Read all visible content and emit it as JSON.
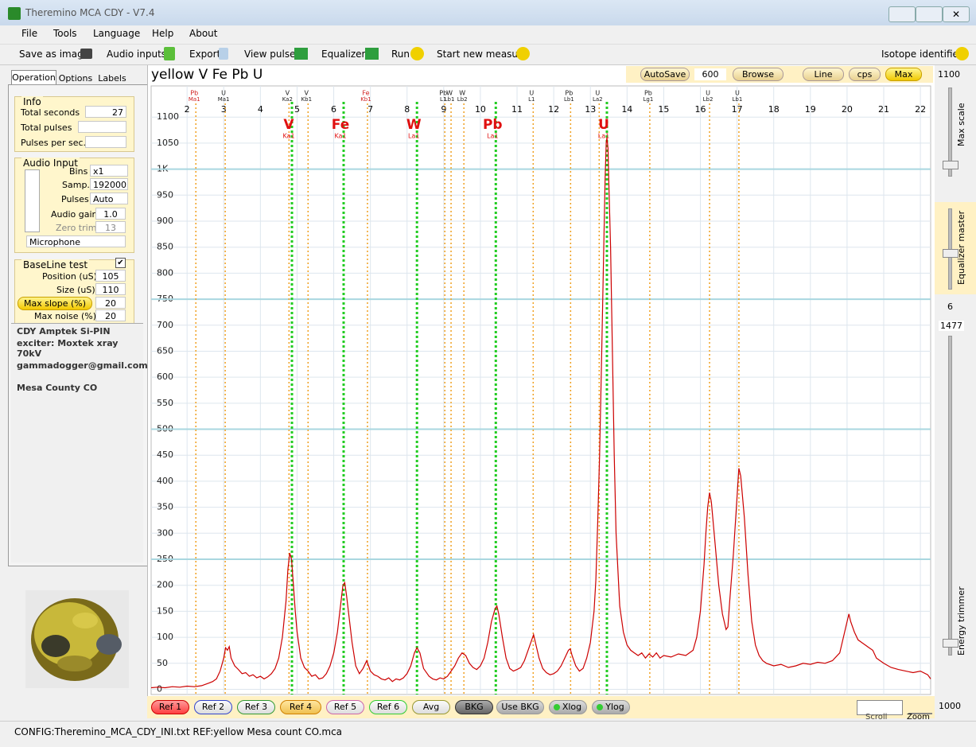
{
  "window": {
    "title": "Theremino MCA CDY - V7.4"
  },
  "menu": [
    "File",
    "Tools",
    "Language",
    "Help",
    "About"
  ],
  "toolbar": {
    "items": [
      "Save as image",
      "Audio inputs",
      "Export",
      "View pulses",
      "Equalizers",
      "Run",
      "Start new measure"
    ],
    "right": "Isotope identifier"
  },
  "tabs": [
    "Operation",
    "Options",
    "Labels"
  ],
  "info": {
    "title": "Info",
    "rows": [
      {
        "label": "Total seconds",
        "value": 27
      },
      {
        "label": "Total pulses"
      },
      {
        "label": "Pulses per sec."
      }
    ]
  },
  "audio_input": {
    "title": "Audio Input",
    "rows": [
      {
        "label": "Bins",
        "value": "x1"
      },
      {
        "label": "Samp.",
        "value": "192000"
      },
      {
        "label": "Pulses",
        "value": "Auto"
      },
      {
        "label": "Audio gain",
        "value": "1.0"
      },
      {
        "label": "Zero trim",
        "value": 13
      }
    ],
    "device": "Microphone"
  },
  "baseline": {
    "title": "BaseLine test",
    "rows": [
      {
        "label": "Position (uS)",
        "value": 105
      },
      {
        "label": "Size (uS)",
        "value": 110
      },
      {
        "label": "Max slope (%)",
        "value": 20
      },
      {
        "label": "Max noise (%)",
        "value": 20
      }
    ]
  },
  "notes": [
    "CDY Amptek Si-PIN",
    "exciter: Moxtek xray 70kV",
    "gammadogger@gmail.com",
    "Mesa County CO"
  ],
  "top_controls": {
    "autosave": "AutoSave",
    "autosave_value": 600,
    "browse": "Browse",
    "line": "Line",
    "cps": "cps",
    "max": "Max"
  },
  "sliders": {
    "max_scale": {
      "label": "Max scale",
      "value": 1100
    },
    "equalizer_master": {
      "label": "Equalizer master",
      "value": 6
    },
    "energy_trimmer": {
      "label": "Energy trimmer",
      "top_value": 1477
    },
    "zoom_value": 1000
  },
  "bottom_buttons": [
    "Ref 1",
    "Ref 2",
    "Ref 3",
    "Ref 4",
    "Ref 5",
    "Ref 6",
    "Avg",
    "BKG",
    "Use BKG",
    "Xlog",
    "Ylog"
  ],
  "scroll": "Scroll",
  "zoom": "Zoom",
  "status": "CONFIG:Theremino_MCA_CDY_INI.txt REF:yellow Mesa count CO.mca",
  "chart_data": {
    "type": "line",
    "title": "yellow V Fe Pb U",
    "color": "#cc0000",
    "x": [
      1.02,
      1.2,
      1.4,
      1.6,
      1.8,
      2.0,
      2.2,
      2.4,
      2.6,
      2.7,
      2.8,
      2.9,
      3.0,
      3.05,
      3.1,
      3.15,
      3.2,
      3.3,
      3.4,
      3.5,
      3.6,
      3.7,
      3.8,
      3.9,
      4.0,
      4.1,
      4.2,
      4.3,
      4.4,
      4.5,
      4.6,
      4.7,
      4.75,
      4.8,
      4.85,
      4.9,
      4.95,
      5.0,
      5.1,
      5.2,
      5.3,
      5.4,
      5.5,
      5.6,
      5.7,
      5.8,
      5.9,
      6.0,
      6.1,
      6.2,
      6.25,
      6.3,
      6.35,
      6.4,
      6.5,
      6.6,
      6.7,
      6.8,
      6.9,
      7.0,
      7.1,
      7.2,
      7.3,
      7.4,
      7.5,
      7.6,
      7.7,
      7.8,
      7.9,
      8.0,
      8.1,
      8.2,
      8.27,
      8.35,
      8.45,
      8.6,
      8.7,
      8.8,
      8.9,
      9.0,
      9.1,
      9.2,
      9.3,
      9.4,
      9.5,
      9.6,
      9.7,
      9.8,
      9.9,
      10.0,
      10.1,
      10.2,
      10.3,
      10.4,
      10.45,
      10.5,
      10.6,
      10.7,
      10.8,
      10.9,
      11.0,
      11.1,
      11.2,
      11.3,
      11.4,
      11.45,
      11.5,
      11.6,
      11.7,
      11.8,
      11.9,
      12.0,
      12.1,
      12.2,
      12.3,
      12.4,
      12.45,
      12.5,
      12.6,
      12.7,
      12.8,
      12.9,
      13.0,
      13.1,
      13.15,
      13.2,
      13.25,
      13.3,
      13.35,
      13.4,
      13.43,
      13.45,
      13.48,
      13.5,
      13.55,
      13.6,
      13.65,
      13.7,
      13.8,
      13.9,
      14.0,
      14.1,
      14.2,
      14.3,
      14.4,
      14.5,
      14.6,
      14.7,
      14.8,
      14.9,
      15.0,
      15.2,
      15.4,
      15.6,
      15.8,
      15.9,
      16.0,
      16.1,
      16.15,
      16.2,
      16.25,
      16.3,
      16.4,
      16.5,
      16.6,
      16.7,
      16.75,
      16.8,
      16.9,
      17.0,
      17.05,
      17.1,
      17.2,
      17.3,
      17.4,
      17.5,
      17.6,
      17.7,
      17.8,
      18.0,
      18.2,
      18.4,
      18.6,
      18.8,
      19.0,
      19.2,
      19.4,
      19.6,
      19.8,
      19.9,
      20.0,
      20.05,
      20.1,
      20.2,
      20.3,
      20.4,
      20.5,
      20.6,
      20.7,
      20.8,
      20.9,
      21.0,
      21.2,
      21.4,
      21.6,
      21.8,
      22.0,
      22.2,
      22.28
    ],
    "values": [
      3,
      4,
      3,
      5,
      4,
      6,
      5,
      7,
      12,
      15,
      20,
      35,
      60,
      80,
      75,
      82,
      60,
      45,
      38,
      30,
      32,
      25,
      28,
      22,
      25,
      20,
      24,
      30,
      40,
      60,
      100,
      170,
      230,
      262,
      250,
      200,
      150,
      110,
      60,
      42,
      35,
      25,
      28,
      20,
      22,
      30,
      45,
      70,
      110,
      170,
      200,
      205,
      180,
      150,
      90,
      45,
      30,
      40,
      55,
      35,
      28,
      25,
      20,
      18,
      22,
      15,
      20,
      18,
      22,
      30,
      45,
      70,
      80,
      70,
      40,
      25,
      20,
      18,
      22,
      20,
      25,
      35,
      45,
      60,
      70,
      65,
      50,
      42,
      38,
      45,
      60,
      90,
      130,
      155,
      160,
      145,
      100,
      60,
      40,
      35,
      38,
      42,
      55,
      75,
      95,
      105,
      90,
      60,
      40,
      32,
      28,
      30,
      35,
      45,
      60,
      75,
      78,
      65,
      45,
      35,
      40,
      60,
      90,
      150,
      210,
      320,
      450,
      620,
      800,
      980,
      1050,
      1060,
      1040,
      980,
      850,
      650,
      450,
      300,
      160,
      110,
      85,
      75,
      70,
      65,
      70,
      60,
      68,
      62,
      70,
      60,
      65,
      62,
      68,
      65,
      75,
      100,
      150,
      240,
      300,
      350,
      378,
      360,
      280,
      200,
      145,
      115,
      120,
      170,
      260,
      370,
      425,
      410,
      330,
      220,
      130,
      85,
      65,
      55,
      50,
      45,
      48,
      42,
      45,
      50,
      48,
      52,
      50,
      55,
      70,
      100,
      130,
      145,
      130,
      110,
      95,
      90,
      85,
      80,
      75,
      60,
      55,
      50,
      42,
      38,
      35,
      32,
      35,
      28,
      20
    ],
    "xlim": [
      1.02,
      22.28
    ],
    "ylim": [
      -10,
      1160
    ],
    "xticks": [
      2,
      3,
      4,
      5,
      6,
      7,
      8,
      9,
      10,
      11,
      12,
      13,
      14,
      15,
      16,
      17,
      18,
      19,
      20,
      21,
      22
    ],
    "yticks": [
      0,
      50,
      100,
      150,
      200,
      250,
      300,
      350,
      400,
      450,
      500,
      550,
      600,
      650,
      700,
      750,
      800,
      850,
      900,
      950,
      {
        "value": 1000,
        "label": "1K"
      },
      1050,
      1100
    ],
    "major_gridlines": [
      250,
      500,
      750,
      1000
    ],
    "grid": true,
    "markers": [
      {
        "element": "Pb",
        "line": "Ma1",
        "energy": 2.24,
        "identified": false,
        "color": "#d02020"
      },
      {
        "element": "U",
        "line": "Ma1",
        "energy": 3.04,
        "identified": false,
        "color": "#202020"
      },
      {
        "element": "V",
        "line": "Ka2",
        "energy": 4.78,
        "identified": false,
        "color": "#202020"
      },
      {
        "element": "V",
        "line": "Ka1",
        "energy": 4.86,
        "identified": true,
        "color": "#e01010"
      },
      {
        "element": "V",
        "line": "Kb1",
        "energy": 5.3,
        "identified": false,
        "color": "#202020"
      },
      {
        "element": "Fe",
        "line": "Ka1",
        "energy": 6.27,
        "identified": true,
        "color": "#e01010"
      },
      {
        "element": "Fe",
        "line": "Kb1",
        "energy": 6.92,
        "identified": false,
        "color": "#d02020"
      },
      {
        "element": "W",
        "line": "La1",
        "energy": 8.27,
        "identified": true,
        "color": "#e01010"
      },
      {
        "element": "Pb",
        "line": "L1",
        "energy": 9.03,
        "identified": false,
        "color": "#202020"
      },
      {
        "element": "W",
        "line": "Lb1",
        "energy": 9.2,
        "identified": false,
        "color": "#202020"
      },
      {
        "element": "W",
        "line": "Lb2",
        "energy": 9.55,
        "identified": false,
        "color": "#202020"
      },
      {
        "element": "Pb",
        "line": "La1",
        "energy": 10.42,
        "identified": true,
        "color": "#e01010"
      },
      {
        "element": "U",
        "line": "L1",
        "energy": 11.44,
        "identified": false,
        "color": "#202020"
      },
      {
        "element": "Pb",
        "line": "Lb1",
        "energy": 12.46,
        "identified": false,
        "color": "#202020"
      },
      {
        "element": "U",
        "line": "La2",
        "energy": 13.24,
        "identified": false,
        "color": "#202020"
      },
      {
        "element": "U",
        "line": "La1",
        "energy": 13.45,
        "identified": true,
        "color": "#e01010"
      },
      {
        "element": "Pb",
        "line": "Lg1",
        "energy": 14.62,
        "identified": false,
        "color": "#202020"
      },
      {
        "element": "U",
        "line": "Lb2",
        "energy": 16.25,
        "identified": false,
        "color": "#202020"
      },
      {
        "element": "U",
        "line": "Lb1",
        "energy": 17.05,
        "identified": false,
        "color": "#202020"
      }
    ]
  }
}
